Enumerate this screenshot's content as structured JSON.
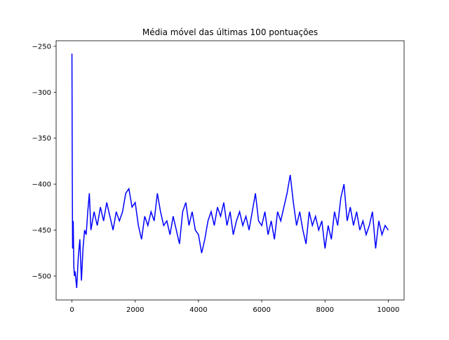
{
  "chart_data": {
    "type": "line",
    "title": "Média móvel das últimas 100 pontuações",
    "x": [
      0,
      10,
      20,
      40,
      60,
      80,
      100,
      150,
      200,
      250,
      300,
      350,
      400,
      450,
      500,
      550,
      600,
      700,
      800,
      900,
      1000,
      1100,
      1200,
      1300,
      1400,
      1500,
      1600,
      1700,
      1800,
      1900,
      2000,
      2100,
      2200,
      2300,
      2400,
      2500,
      2600,
      2700,
      2800,
      2900,
      3000,
      3100,
      3200,
      3300,
      3400,
      3500,
      3600,
      3700,
      3800,
      3900,
      4000,
      4100,
      4200,
      4300,
      4400,
      4500,
      4600,
      4700,
      4800,
      4900,
      5000,
      5100,
      5200,
      5300,
      5400,
      5500,
      5600,
      5700,
      5800,
      5900,
      6000,
      6100,
      6200,
      6300,
      6400,
      6500,
      6600,
      6700,
      6800,
      6900,
      7000,
      7100,
      7200,
      7300,
      7400,
      7500,
      7600,
      7700,
      7800,
      7900,
      8000,
      8100,
      8200,
      8300,
      8400,
      8500,
      8600,
      8700,
      8800,
      8900,
      9000,
      9100,
      9200,
      9300,
      9400,
      9500,
      9600,
      9700,
      9800,
      9900,
      10000
    ],
    "series": [
      {
        "color": "#0000ff",
        "values": [
          -258,
          -380,
          -470,
          -440,
          -490,
          -500,
          -495,
          -513,
          -480,
          -460,
          -505,
          -470,
          -450,
          -455,
          -430,
          -410,
          -450,
          -430,
          -445,
          -425,
          -440,
          -420,
          -435,
          -450,
          -430,
          -440,
          -430,
          -410,
          -405,
          -425,
          -420,
          -445,
          -460,
          -435,
          -445,
          -430,
          -440,
          -410,
          -430,
          -445,
          -440,
          -455,
          -435,
          -450,
          -465,
          -430,
          -420,
          -445,
          -430,
          -450,
          -455,
          -475,
          -460,
          -440,
          -430,
          -445,
          -425,
          -435,
          -420,
          -445,
          -430,
          -455,
          -440,
          -430,
          -445,
          -435,
          -450,
          -430,
          -410,
          -440,
          -445,
          -430,
          -455,
          -440,
          -460,
          -430,
          -440,
          -425,
          -410,
          -390,
          -420,
          -445,
          -430,
          -450,
          -465,
          -430,
          -445,
          -435,
          -450,
          -440,
          -470,
          -445,
          -460,
          -430,
          -445,
          -415,
          -400,
          -440,
          -425,
          -445,
          -430,
          -450,
          -440,
          -455,
          -445,
          -430,
          -470,
          -440,
          -455,
          -445,
          -450
        ]
      }
    ],
    "xlim": [
      -500,
      10500
    ],
    "ylim": [
      -526,
      -244
    ],
    "xticks": [
      0,
      2000,
      4000,
      6000,
      8000,
      10000
    ],
    "yticks": [
      {
        "value": -500,
        "label": "−500"
      },
      {
        "value": -450,
        "label": "−450"
      },
      {
        "value": -400,
        "label": "−400"
      },
      {
        "value": -350,
        "label": "−350"
      },
      {
        "value": -300,
        "label": "−300"
      },
      {
        "value": -250,
        "label": "−250"
      }
    ]
  }
}
